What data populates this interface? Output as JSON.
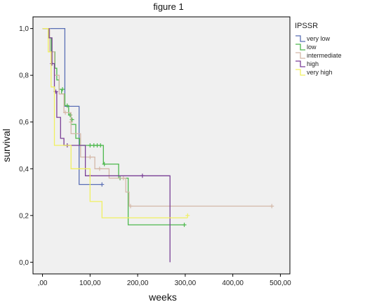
{
  "chart_data": {
    "type": "line",
    "title": "figure 1",
    "xlabel": "weeks",
    "ylabel": "survival",
    "xlim": [
      -20,
      520
    ],
    "ylim": [
      -0.05,
      1.05
    ],
    "x_ticks": [
      0,
      100,
      200,
      300,
      400,
      500
    ],
    "x_tick_labels": [
      ",00",
      "100,00",
      "200,00",
      "300,00",
      "400,00",
      "500,00"
    ],
    "y_ticks": [
      0,
      0.2,
      0.4,
      0.6,
      0.8,
      1.0
    ],
    "y_tick_labels": [
      "0,0",
      "0,2",
      "0,4",
      "0,6",
      "0,8",
      "1,0"
    ],
    "grid": false,
    "legend_title": "IPSSR",
    "legend_position": "top-right",
    "series": [
      {
        "name": "very low",
        "color": "#5a6fb5",
        "x": [
          0,
          10,
          10,
          47,
          47,
          77,
          77,
          125
        ],
        "y": [
          1.0,
          1.0,
          1.0,
          1.0,
          0.667,
          0.667,
          0.333,
          0.333
        ],
        "censored": [
          [
            125,
            0.333
          ]
        ]
      },
      {
        "name": "low",
        "color": "#4cb84c",
        "x": [
          0,
          10,
          12,
          12,
          18,
          18,
          26,
          26,
          30,
          30,
          35,
          35,
          40,
          40,
          47,
          47,
          55,
          55,
          60,
          60,
          70,
          70,
          78,
          78,
          128,
          128,
          160,
          160,
          180,
          180,
          298
        ],
        "y": [
          1.0,
          1.0,
          1.0,
          0.96,
          0.96,
          0.9,
          0.9,
          0.83,
          0.83,
          0.78,
          0.78,
          0.74,
          0.74,
          0.72,
          0.72,
          0.67,
          0.67,
          0.63,
          0.63,
          0.59,
          0.59,
          0.53,
          0.53,
          0.5,
          0.5,
          0.42,
          0.42,
          0.36,
          0.36,
          0.16,
          0.16
        ],
        "censored": [
          [
            42,
            0.74
          ],
          [
            52,
            0.67
          ],
          [
            58,
            0.63
          ],
          [
            62,
            0.61
          ],
          [
            100,
            0.5
          ],
          [
            108,
            0.5
          ],
          [
            115,
            0.5
          ],
          [
            122,
            0.5
          ],
          [
            130,
            0.42
          ],
          [
            163,
            0.36
          ],
          [
            298,
            0.16
          ]
        ]
      },
      {
        "name": "intermediate",
        "color": "#d4b8a8",
        "x": [
          0,
          10,
          15,
          15,
          25,
          25,
          35,
          35,
          45,
          45,
          60,
          60,
          80,
          80,
          110,
          110,
          140,
          140,
          175,
          175,
          182,
          182,
          482
        ],
        "y": [
          1.0,
          1.0,
          1.0,
          0.9,
          0.9,
          0.8,
          0.8,
          0.72,
          0.72,
          0.64,
          0.64,
          0.55,
          0.55,
          0.45,
          0.45,
          0.4,
          0.4,
          0.36,
          0.36,
          0.3,
          0.3,
          0.24,
          0.24
        ],
        "censored": [
          [
            48,
            0.64
          ],
          [
            60,
            0.6
          ],
          [
            100,
            0.45
          ],
          [
            120,
            0.4
          ],
          [
            170,
            0.36
          ],
          [
            185,
            0.24
          ],
          [
            482,
            0.24
          ]
        ]
      },
      {
        "name": "high",
        "color": "#7a3f96",
        "x": [
          0,
          10,
          14,
          14,
          20,
          20,
          25,
          25,
          30,
          30,
          38,
          38,
          45,
          45,
          90,
          90,
          268,
          268
        ],
        "y": [
          1.0,
          1.0,
          1.0,
          0.96,
          0.96,
          0.85,
          0.85,
          0.73,
          0.73,
          0.62,
          0.62,
          0.53,
          0.53,
          0.5,
          0.5,
          0.37,
          0.37,
          0.0
        ],
        "censored": [
          [
            20,
            0.85
          ],
          [
            28,
            0.73
          ],
          [
            52,
            0.5
          ],
          [
            100,
            0.37
          ],
          [
            210,
            0.37
          ]
        ]
      },
      {
        "name": "very high",
        "color": "#f0f060",
        "x": [
          0,
          8,
          12,
          12,
          18,
          18,
          25,
          25,
          60,
          60,
          100,
          100,
          125,
          125,
          305
        ],
        "y": [
          1.0,
          1.0,
          1.0,
          0.9,
          0.9,
          0.75,
          0.75,
          0.5,
          0.5,
          0.4,
          0.4,
          0.26,
          0.26,
          0.19,
          0.19
        ],
        "censored": [
          [
            305,
            0.2
          ]
        ]
      }
    ]
  }
}
